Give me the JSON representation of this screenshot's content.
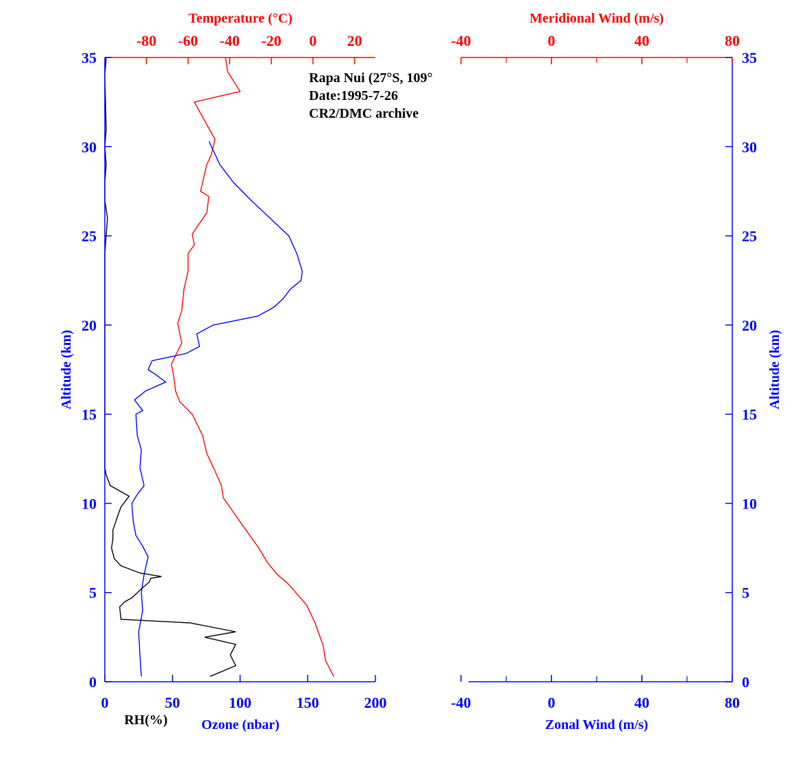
{
  "chart_data": {
    "type": "line",
    "annotations": [
      "Rapa Nui (27°S, 109°",
      "Date:1995-7-26",
      "CR2/DMC archive"
    ],
    "left_panel": {
      "x_bottom": {
        "label": "Ozone (nbar)",
        "range": [
          0,
          200
        ],
        "ticks": [
          0,
          50,
          100,
          150,
          200
        ],
        "color": "#0000ff"
      },
      "x_bottom_secondary_label": "RH(%)",
      "x_top": {
        "label": "Temperature (°C)",
        "range": [
          -100,
          30
        ],
        "ticks": [
          -80,
          -60,
          -40,
          -20,
          0,
          20
        ],
        "color": "#ff0000"
      },
      "y": {
        "label": "Altitude (km)",
        "range": [
          0,
          35
        ],
        "ticks": [
          0,
          5,
          10,
          15,
          20,
          25,
          30,
          35
        ],
        "color": "#0000ff"
      },
      "series": [
        {
          "key": "temperature",
          "color": "#ff0000",
          "axis": "top",
          "points": [
            [
              10,
              0.3
            ],
            [
              6,
              1.2
            ],
            [
              5,
              2
            ],
            [
              1,
              3.3
            ],
            [
              -3,
              4.3
            ],
            [
              -12,
              5.5
            ],
            [
              -17,
              6
            ],
            [
              -22,
              6.7
            ],
            [
              -26,
              7.5
            ],
            [
              -34,
              8.8
            ],
            [
              -40,
              9.8
            ],
            [
              -43,
              10.3
            ],
            [
              -44,
              11
            ],
            [
              -47,
              11.8
            ],
            [
              -51,
              12.8
            ],
            [
              -53,
              13.8
            ],
            [
              -58,
              15
            ],
            [
              -64,
              15.7
            ],
            [
              -66,
              16.3
            ],
            [
              -67,
              17.2
            ],
            [
              -68,
              17.8
            ],
            [
              -66,
              18.3
            ],
            [
              -63,
              19
            ],
            [
              -65,
              20.1
            ],
            [
              -63,
              20.8
            ],
            [
              -62,
              22
            ],
            [
              -60,
              23
            ],
            [
              -60,
              24
            ],
            [
              -57,
              24.5
            ],
            [
              -58,
              25.1
            ],
            [
              -51,
              26.3
            ],
            [
              -50,
              27.2
            ],
            [
              -54,
              27.5
            ],
            [
              -52,
              28.5
            ],
            [
              -51,
              29
            ],
            [
              -49,
              29.5
            ],
            [
              -47,
              30.4
            ],
            [
              -57,
              32.5
            ],
            [
              -35,
              33.1
            ],
            [
              -41,
              34.2
            ],
            [
              -42,
              35
            ]
          ]
        },
        {
          "key": "ozone",
          "color": "#0000ff",
          "axis": "bottom",
          "points": [
            [
              27,
              0.3
            ],
            [
              26,
              1.5
            ],
            [
              25,
              2.8
            ],
            [
              28,
              4
            ],
            [
              27,
              5
            ],
            [
              29,
              6
            ],
            [
              32,
              7
            ],
            [
              28,
              7.6
            ],
            [
              23,
              8.2
            ],
            [
              21,
              9
            ],
            [
              20,
              10
            ],
            [
              24,
              10.5
            ],
            [
              29,
              11
            ],
            [
              26,
              12
            ],
            [
              27,
              13
            ],
            [
              24,
              13.8
            ],
            [
              23,
              15
            ],
            [
              28,
              15.2
            ],
            [
              22,
              15.8
            ],
            [
              30,
              16.3
            ],
            [
              45,
              16.8
            ],
            [
              38,
              17.2
            ],
            [
              32,
              17.5
            ],
            [
              35,
              18
            ],
            [
              60,
              18.4
            ],
            [
              70,
              18.8
            ],
            [
              68,
              19.5
            ],
            [
              80,
              20
            ],
            [
              113,
              20.5
            ],
            [
              125,
              21
            ],
            [
              132,
              21.5
            ],
            [
              137,
              22
            ],
            [
              145,
              22.5
            ],
            [
              146,
              23
            ],
            [
              142,
              24
            ],
            [
              136,
              25
            ],
            [
              122,
              26
            ],
            [
              108,
              27
            ],
            [
              95,
              28
            ],
            [
              85,
              29
            ],
            [
              77,
              30.3
            ]
          ]
        },
        {
          "key": "relative_humidity",
          "color": "#000000",
          "axis": "bottom_percent",
          "points": [
            [
              78,
              0.3
            ],
            [
              97,
              0.9
            ],
            [
              93,
              1.5
            ],
            [
              97,
              2.1
            ],
            [
              74,
              2.5
            ],
            [
              97,
              2.8
            ],
            [
              63,
              3.3
            ],
            [
              12,
              3.5
            ],
            [
              11,
              4.2
            ],
            [
              15,
              4.5
            ],
            [
              20,
              4.7
            ],
            [
              27,
              5.2
            ],
            [
              33,
              5.6
            ],
            [
              34,
              5.8
            ],
            [
              42,
              5.9
            ],
            [
              26,
              6.1
            ],
            [
              12,
              6.5
            ],
            [
              7,
              6.9
            ],
            [
              5,
              7.5
            ],
            [
              6,
              8
            ],
            [
              6,
              8.5
            ],
            [
              10,
              9.4
            ],
            [
              12,
              9.8
            ],
            [
              16,
              10.2
            ],
            [
              18,
              10.4
            ],
            [
              4,
              11
            ],
            [
              1,
              11.6
            ],
            [
              0,
              12
            ],
            [
              0,
              14
            ],
            [
              0,
              24
            ],
            [
              2,
              26
            ],
            [
              0,
              27
            ],
            [
              0,
              28
            ],
            [
              1,
              29
            ],
            [
              0,
              30
            ],
            [
              1,
              31
            ],
            [
              0,
              34
            ],
            [
              1,
              35
            ]
          ]
        }
      ]
    },
    "right_panel": {
      "x_bottom": {
        "label": "Zonal Wind (m/s)",
        "range": [
          -40,
          80
        ],
        "ticks": [
          -40,
          0,
          40,
          80
        ],
        "color": "#0000ff"
      },
      "x_top": {
        "label": "Meridional Wind (m/s)",
        "range": [
          -40,
          80
        ],
        "ticks": [
          -40,
          0,
          40,
          80
        ],
        "color": "#ff0000"
      },
      "y": {
        "label": "Altitude (km)",
        "range": [
          0,
          35
        ],
        "ticks": [
          0,
          5,
          10,
          15,
          20,
          25,
          30,
          35
        ],
        "color": "#0000ff"
      },
      "series": []
    }
  }
}
